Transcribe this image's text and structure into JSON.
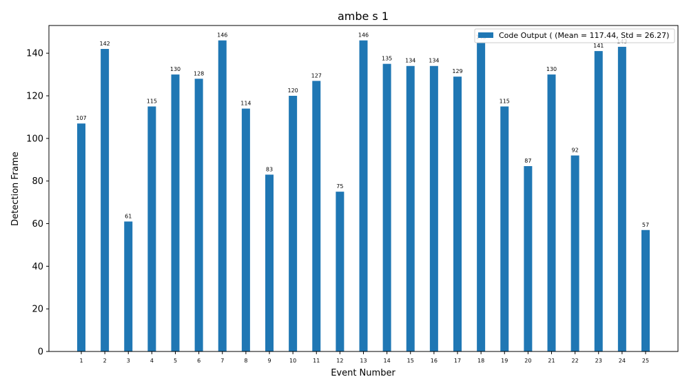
{
  "chart_data": {
    "type": "bar",
    "title": "ambe s 1",
    "xlabel": "Event Number",
    "ylabel": "Detection Frame",
    "ylim": [
      0,
      153
    ],
    "yticks": [
      0,
      20,
      40,
      60,
      80,
      100,
      120,
      140
    ],
    "categories": [
      "1",
      "2",
      "3",
      "4",
      "5",
      "6",
      "7",
      "8",
      "9",
      "10",
      "11",
      "12",
      "13",
      "14",
      "15",
      "16",
      "17",
      "18",
      "19",
      "20",
      "21",
      "22",
      "23",
      "24",
      "25"
    ],
    "series": [
      {
        "name": "Code Output ( (Mean = 117.44, Std = 26.27)",
        "color": "#1f77b4",
        "values": [
          107,
          142,
          61,
          115,
          130,
          128,
          146,
          114,
          83,
          120,
          127,
          75,
          146,
          135,
          134,
          134,
          129,
          145,
          115,
          87,
          130,
          92,
          141,
          143,
          57
        ]
      }
    ],
    "data_labels": [
      "107",
      "142",
      "61",
      "115",
      "130",
      "128",
      "146",
      "114",
      "83",
      "120",
      "127",
      "75",
      "146",
      "135",
      "134",
      "134",
      "129",
      "145",
      "115",
      "87",
      "130",
      "92",
      "141",
      "143",
      "57"
    ],
    "legend_position": "top-right",
    "grid": false
  }
}
